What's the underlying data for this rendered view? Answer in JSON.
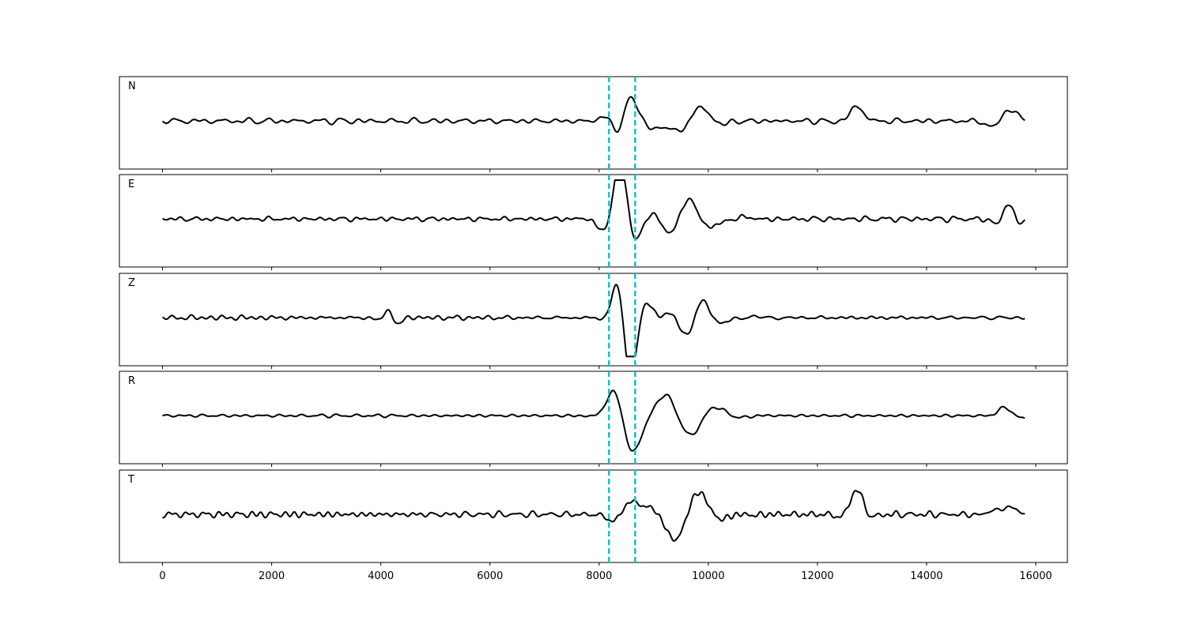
{
  "chart_data": {
    "type": "line",
    "x_range": [
      -790,
      15790
    ],
    "xlim": [
      -790,
      16580
    ],
    "x_ticks": [
      "0",
      "2000",
      "4000",
      "6000",
      "8000",
      "10000",
      "12000",
      "14000",
      "16000"
    ],
    "x_tick_values": [
      0,
      2000,
      4000,
      6000,
      8000,
      10000,
      12000,
      14000,
      16000
    ],
    "markers": [
      8180,
      8660
    ],
    "marker_color": "#17becf",
    "trace_color": "#000000",
    "x_sample_start": 0,
    "x_sample_end": 15800,
    "panels": [
      {
        "label": "N",
        "seed": 11,
        "amp_scale": 1.0,
        "events": [
          {
            "center": 8430,
            "width": 260,
            "amp": 1.0
          },
          {
            "center": 9300,
            "width": 700,
            "amp": 0.45
          },
          {
            "center": 12700,
            "width": 250,
            "amp": 0.35
          },
          {
            "center": 15400,
            "width": 300,
            "amp": 0.4
          }
        ],
        "noise": 0.12
      },
      {
        "label": "E",
        "seed": 23,
        "amp_scale": 1.0,
        "events": [
          {
            "center": 8450,
            "width": 300,
            "amp": 1.0
          },
          {
            "center": 9400,
            "width": 800,
            "amp": 0.55
          },
          {
            "center": 15550,
            "width": 250,
            "amp": 0.5
          }
        ],
        "noise": 0.1
      },
      {
        "label": "Z",
        "seed": 37,
        "amp_scale": 1.0,
        "events": [
          {
            "center": 4200,
            "width": 220,
            "amp": 0.45
          },
          {
            "center": 8500,
            "width": 300,
            "amp": 1.0
          },
          {
            "center": 9500,
            "width": 900,
            "amp": 0.35
          }
        ],
        "noise": 0.11
      },
      {
        "label": "R",
        "seed": 53,
        "amp_scale": 1.0,
        "events": [
          {
            "center": 8450,
            "width": 300,
            "amp": 1.0
          },
          {
            "center": 9400,
            "width": 800,
            "amp": 0.5
          },
          {
            "center": 15500,
            "width": 250,
            "amp": 0.45
          }
        ],
        "noise": 0.08
      },
      {
        "label": "T",
        "seed": 71,
        "amp_scale": 1.0,
        "events": [
          {
            "center": 8420,
            "width": 260,
            "amp": 1.0
          },
          {
            "center": 9500,
            "width": 800,
            "amp": 0.5
          },
          {
            "center": 12700,
            "width": 250,
            "amp": 0.35
          },
          {
            "center": 15400,
            "width": 300,
            "amp": 0.35
          }
        ],
        "noise": 0.13
      }
    ]
  }
}
